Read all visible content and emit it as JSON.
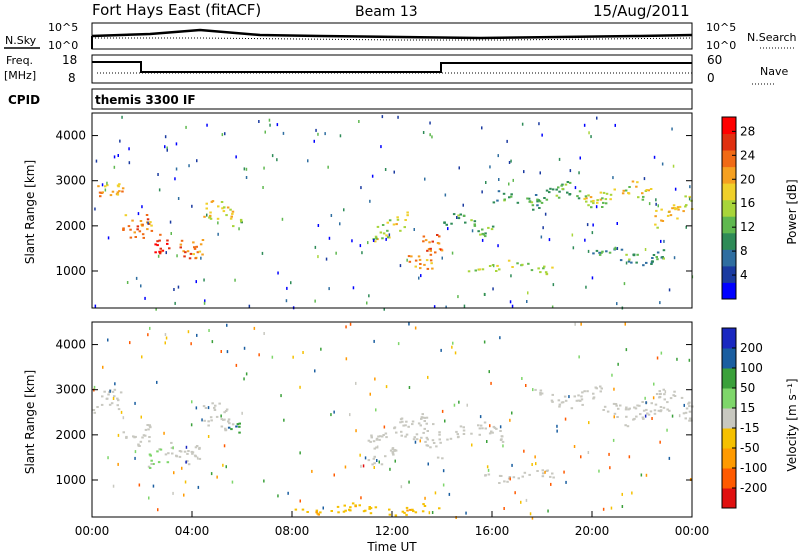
{
  "header": {
    "station": "Fort Hays East (fitACF)",
    "beam": "Beam 13",
    "date": "15/Aug/2011"
  },
  "side_labels": {
    "nsky": "N.Sky",
    "nsearch": "N.Search",
    "freq": "Freq.",
    "freq_unit": "[MHz]",
    "nave": "Nave",
    "cpid": "CPID",
    "cpid_value": "themis 3300 IF"
  },
  "noise_axis": {
    "left_top": "10^5",
    "left_bottom": "10^0",
    "right_top": "10^5",
    "right_bottom": "10^0"
  },
  "freq_axis": {
    "ticks": [
      "18",
      "8"
    ],
    "nave_ticks": [
      "60",
      "0"
    ]
  },
  "chart_data": [
    {
      "type": "heatmap",
      "name": "power-panel",
      "xlabel": "",
      "ylabel": "Slant Range [km]",
      "x_range_hours": [
        0,
        24
      ],
      "y_range_km": [
        180,
        4500
      ],
      "y_ticks": [
        "1000",
        "2000",
        "3000",
        "4000"
      ],
      "colorbar": {
        "label": "Power [dB]",
        "ticks": [
          "28",
          "24",
          "20",
          "16",
          "12",
          "8",
          "4"
        ],
        "range": [
          0,
          30
        ],
        "colors": [
          "#0000ff",
          "#1a3aa0",
          "#2f6ea0",
          "#2e8b57",
          "#5fb84f",
          "#a8d53a",
          "#f0d02a",
          "#f5a020",
          "#f06a15",
          "#e03010",
          "#ff0000"
        ]
      },
      "bands": [
        {
          "t0": 0.0,
          "t1": 1.2,
          "r0": 2400,
          "r1": 3000,
          "level": 20
        },
        {
          "t0": 1.2,
          "t1": 2.4,
          "r0": 1700,
          "r1": 2600,
          "level": 22
        },
        {
          "t0": 2.4,
          "t1": 3.2,
          "r0": 1100,
          "r1": 1800,
          "level": 26
        },
        {
          "t0": 3.2,
          "t1": 4.4,
          "r0": 1300,
          "r1": 2000,
          "level": 22
        },
        {
          "t0": 4.4,
          "t1": 5.6,
          "r0": 1800,
          "r1": 2600,
          "level": 18
        },
        {
          "t0": 5.6,
          "t1": 6.0,
          "r0": 2000,
          "r1": 2400,
          "level": 12
        },
        {
          "t0": 11.2,
          "t1": 12.6,
          "r0": 1700,
          "r1": 2400,
          "level": 16
        },
        {
          "t0": 12.6,
          "t1": 13.6,
          "r0": 900,
          "r1": 1500,
          "level": 20
        },
        {
          "t0": 13.2,
          "t1": 14.0,
          "r0": 1300,
          "r1": 2200,
          "level": 24
        },
        {
          "t0": 14.0,
          "t1": 16.0,
          "r0": 1800,
          "r1": 2300,
          "level": 12
        },
        {
          "t0": 15.0,
          "t1": 18.4,
          "r0": 950,
          "r1": 1250,
          "level": 14
        },
        {
          "t0": 16.0,
          "t1": 18.0,
          "r0": 2400,
          "r1": 2800,
          "level": 10
        },
        {
          "t0": 17.6,
          "t1": 19.6,
          "r0": 2400,
          "r1": 3000,
          "level": 12
        },
        {
          "t0": 19.6,
          "t1": 22.4,
          "r0": 2400,
          "r1": 3000,
          "level": 16
        },
        {
          "t0": 22.4,
          "t1": 24.0,
          "r0": 2000,
          "r1": 2700,
          "level": 18
        },
        {
          "t0": 20.0,
          "t1": 23.0,
          "r0": 1100,
          "r1": 1600,
          "level": 10
        }
      ]
    },
    {
      "type": "heatmap",
      "name": "velocity-panel",
      "xlabel": "Time UT",
      "ylabel": "Slant Range [km]",
      "x_range_hours": [
        0,
        24
      ],
      "x_ticks": [
        "00:00",
        "04:00",
        "08:00",
        "12:00",
        "16:00",
        "20:00",
        "00:00"
      ],
      "y_range_km": [
        180,
        4500
      ],
      "y_ticks": [
        "1000",
        "2000",
        "3000",
        "4000"
      ],
      "colorbar": {
        "label": "Velocity [m s⁻¹]",
        "ticks": [
          "200",
          "100",
          "50",
          "15",
          "-15",
          "-50",
          "-100",
          "-200"
        ],
        "range": [
          -250,
          250
        ],
        "colors": [
          "#e01010",
          "#ff5a00",
          "#ff9a00",
          "#f5c000",
          "#c8c8c0",
          "#7ed66a",
          "#3aa03a",
          "#1a5ea0",
          "#1a28c0"
        ]
      },
      "bands": [
        {
          "t0": 0.0,
          "t1": 1.2,
          "r0": 2300,
          "r1": 3000,
          "level": 0
        },
        {
          "t0": 1.2,
          "t1": 2.4,
          "r0": 1800,
          "r1": 2500,
          "level": 0
        },
        {
          "t0": 2.2,
          "t1": 3.0,
          "r0": 1050,
          "r1": 1700,
          "level": 40
        },
        {
          "t0": 3.0,
          "t1": 4.4,
          "r0": 1400,
          "r1": 2100,
          "level": 0
        },
        {
          "t0": 4.4,
          "t1": 5.6,
          "r0": 1800,
          "r1": 2700,
          "level": 0
        },
        {
          "t0": 5.4,
          "t1": 6.0,
          "r0": 2000,
          "r1": 2500,
          "level": 120
        },
        {
          "t0": 11.0,
          "t1": 14.0,
          "r0": 1400,
          "r1": 2500,
          "level": 0
        },
        {
          "t0": 14.0,
          "t1": 16.4,
          "r0": 1800,
          "r1": 2300,
          "level": 0
        },
        {
          "t0": 15.4,
          "t1": 18.6,
          "r0": 950,
          "r1": 1250,
          "level": 0
        },
        {
          "t0": 17.6,
          "t1": 20.4,
          "r0": 2600,
          "r1": 3100,
          "level": 0
        },
        {
          "t0": 20.4,
          "t1": 24.0,
          "r0": 2200,
          "r1": 3000,
          "level": 0
        },
        {
          "t0": 8.0,
          "t1": 14.0,
          "r0": 200,
          "r1": 500,
          "level": -60
        }
      ]
    }
  ]
}
